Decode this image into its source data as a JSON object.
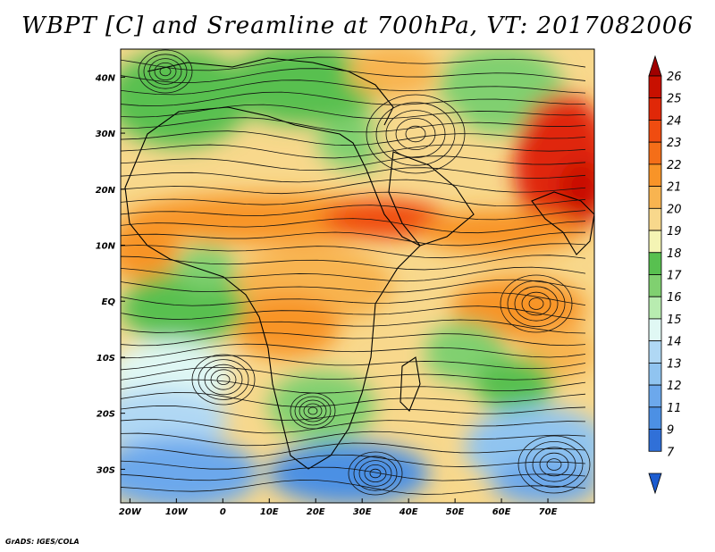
{
  "title": "WBPT [C] and Sreamline at 700hPa, VT: 2017082006",
  "credit": "GrADS: IGES/COLA",
  "chart_data": {
    "type": "heatmap",
    "variable": "Wet-bulb potential temperature with streamlines",
    "level": "700hPa",
    "valid_time": "2017082006",
    "x_ticks": [
      "20W",
      "10W",
      "0",
      "10E",
      "20E",
      "30E",
      "40E",
      "50E",
      "60E",
      "70E"
    ],
    "x_tick_values": [
      -20,
      -10,
      0,
      10,
      20,
      30,
      40,
      50,
      60,
      70
    ],
    "y_ticks": [
      "40N",
      "30N",
      "20N",
      "10N",
      "EQ",
      "10S",
      "20S",
      "30S"
    ],
    "y_tick_values": [
      40,
      30,
      20,
      10,
      0,
      -10,
      -20,
      -30
    ],
    "xlim": [
      -22,
      80
    ],
    "ylim": [
      -36,
      45
    ],
    "colorbar": {
      "labels": [
        "26",
        "25",
        "24",
        "23",
        "22",
        "21",
        "20",
        "19",
        "18",
        "17",
        "16",
        "15",
        "14",
        "13",
        "12",
        "11",
        "9",
        "7"
      ],
      "colors": [
        "#a00000",
        "#c81000",
        "#e02808",
        "#f04c10",
        "#f46e18",
        "#f89428",
        "#f8b450",
        "#f8d88c",
        "#f4f4b4",
        "#58c050",
        "#80d070",
        "#b8ecb0",
        "#e0f8f4",
        "#b0d8f4",
        "#90c4f0",
        "#6ca8ec",
        "#4c90e4",
        "#3070d8",
        "#1c5cd0"
      ]
    }
  }
}
